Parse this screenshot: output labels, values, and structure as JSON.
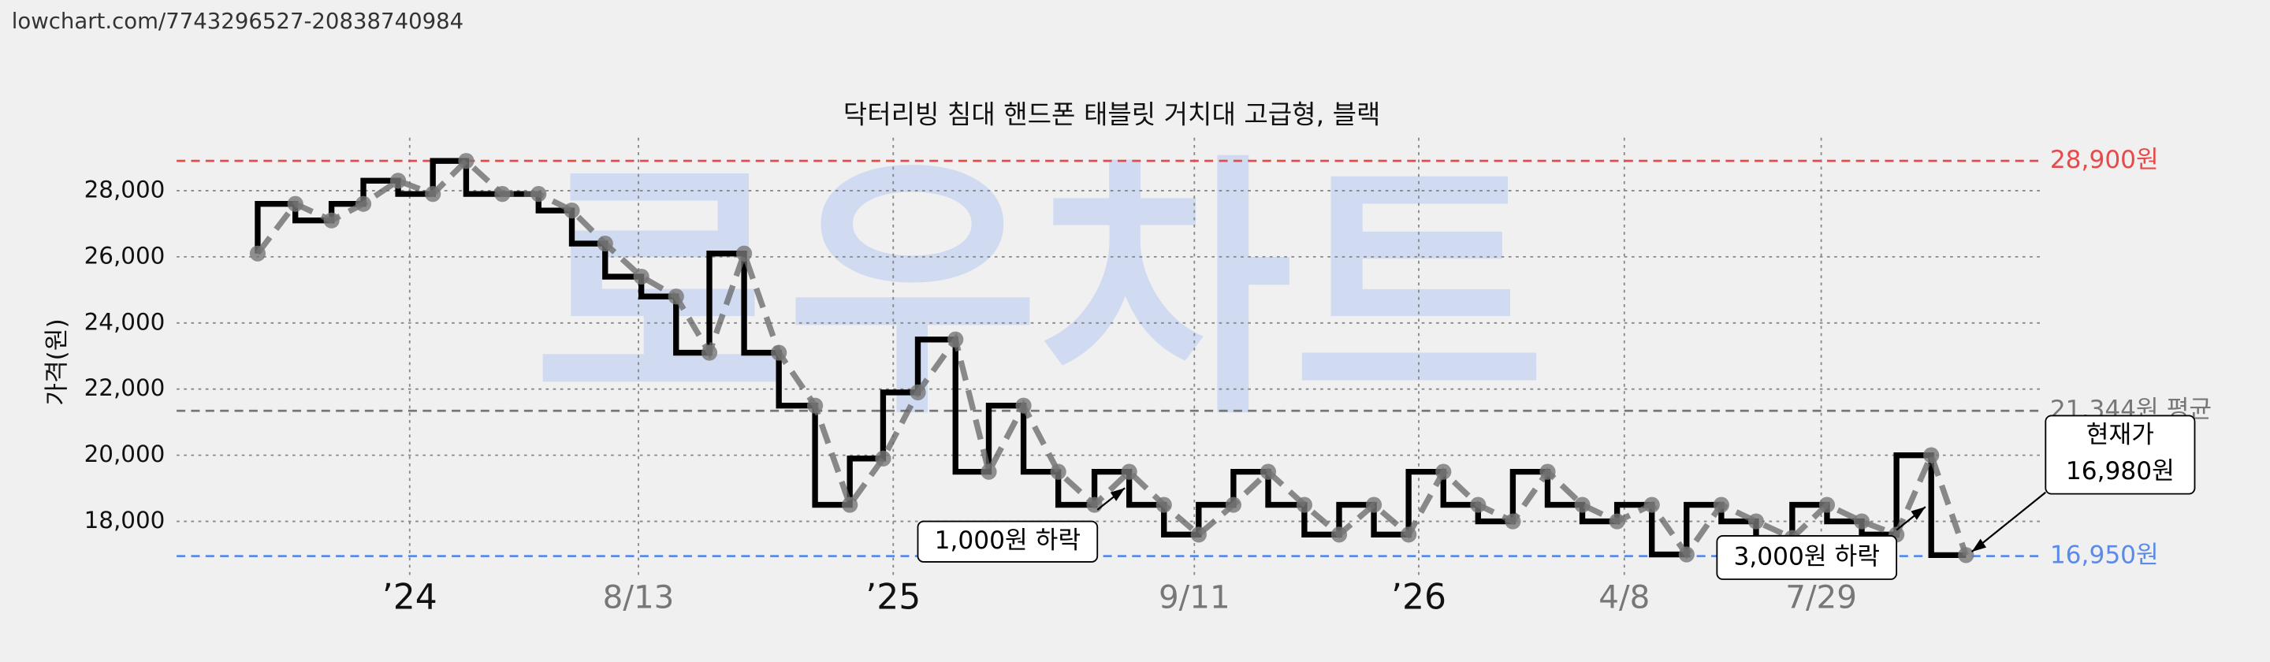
{
  "url": "lowchart.com/7743296527-20838740984",
  "chart_data": {
    "type": "line",
    "title": "닥터리빙 침대 핸드폰 태블릿 거치대 고급형, 블랙",
    "ylabel": "가격(원)",
    "watermark": "로우차트",
    "x": [
      56,
      82,
      107,
      129,
      153,
      177,
      200,
      225,
      250,
      273,
      296,
      321,
      345,
      368,
      392,
      416,
      441,
      465,
      488,
      512,
      538,
      561,
      585,
      609,
      634,
      658,
      682,
      706,
      730,
      754,
      779,
      803,
      827,
      851,
      875,
      899,
      923,
      947,
      971,
      995,
      1019,
      1043,
      1067,
      1091,
      1116,
      1140,
      1164,
      1188,
      1212,
      1236
    ],
    "series": [
      {
        "name": "가격",
        "color": "#000000",
        "values": [
          26100,
          27600,
          27100,
          27600,
          28300,
          27900,
          28900,
          27900,
          27900,
          27400,
          26400,
          25400,
          24800,
          23100,
          26100,
          23100,
          21500,
          18500,
          19900,
          21900,
          23500,
          19500,
          21500,
          19500,
          18500,
          19500,
          18500,
          17600,
          18500,
          19500,
          18500,
          17600,
          18500,
          17600,
          19500,
          18500,
          18000,
          19500,
          18500,
          18000,
          18500,
          17000,
          18500,
          18000,
          17500,
          18500,
          18000,
          17600,
          20000,
          16980
        ]
      }
    ],
    "xlim": [
      0,
      1288
    ],
    "ylim": [
      16250,
      29600
    ],
    "xticks": [
      {
        "value": 161,
        "label": "’24"
      },
      {
        "value": 319,
        "label": "8/13"
      },
      {
        "value": 495,
        "label": "’25"
      },
      {
        "value": 703,
        "label": "9/11"
      },
      {
        "value": 858,
        "label": "’26"
      },
      {
        "value": 1000,
        "label": "4/8"
      },
      {
        "value": 1136,
        "label": "7/29"
      }
    ],
    "yticks": [
      {
        "value": 18000,
        "label": "18,000"
      },
      {
        "value": 20000,
        "label": "20,000"
      },
      {
        "value": 22000,
        "label": "22,000"
      },
      {
        "value": 24000,
        "label": "24,000"
      },
      {
        "value": 26000,
        "label": "26,000"
      },
      {
        "value": 28000,
        "label": "28,000"
      }
    ],
    "grid": true,
    "reference_lines": [
      {
        "value": 28900,
        "label": "28,900원",
        "color": "#e84a4a"
      },
      {
        "value": 21344,
        "label": "21,344원 평균",
        "color": "#777777"
      },
      {
        "value": 16950,
        "label": "16,950원",
        "color": "#5b8ae8"
      }
    ],
    "annotations": [
      {
        "text": "1,000원 하락"
      },
      {
        "text": "3,000원 하락"
      },
      {
        "lines": [
          "현재가",
          "16,980원"
        ]
      }
    ]
  }
}
